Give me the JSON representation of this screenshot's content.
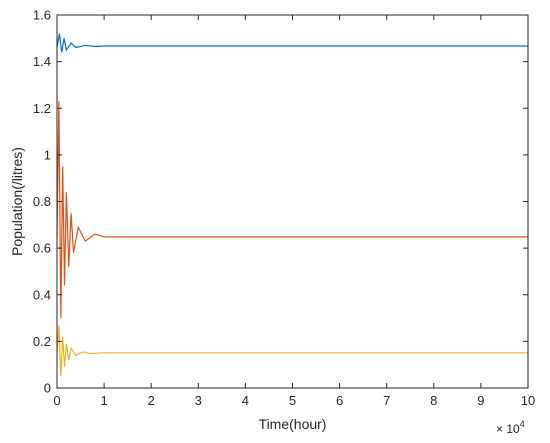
{
  "chart_data": {
    "type": "line",
    "title": "",
    "xlabel": "Time(hour)",
    "ylabel": "Population(/litres)",
    "x_multiplier_label": "× 10",
    "x_multiplier_exponent": "4",
    "xlim": [
      0,
      10
    ],
    "ylim": [
      0,
      1.6
    ],
    "x_ticks": [
      "0",
      "1",
      "2",
      "3",
      "4",
      "5",
      "6",
      "7",
      "8",
      "9",
      "10"
    ],
    "y_ticks": [
      "0",
      "0.2",
      "0.4",
      "0.6",
      "0.8",
      "1",
      "1.2",
      "1.4",
      "1.6"
    ],
    "grid": false,
    "legend": "none",
    "series": [
      {
        "color": "#0072BD",
        "x": [
          0,
          0.05,
          0.1,
          0.15,
          0.2,
          0.3,
          0.4,
          0.6,
          0.8,
          1.0,
          10
        ],
        "values": [
          1.46,
          1.52,
          1.44,
          1.5,
          1.45,
          1.48,
          1.46,
          1.47,
          1.465,
          1.467,
          1.467
        ]
      },
      {
        "color": "#D95319",
        "x": [
          0,
          0.04,
          0.08,
          0.12,
          0.16,
          0.2,
          0.25,
          0.3,
          0.35,
          0.45,
          0.6,
          0.8,
          1.0,
          10
        ],
        "values": [
          0.65,
          1.23,
          0.3,
          0.95,
          0.44,
          0.84,
          0.52,
          0.75,
          0.58,
          0.69,
          0.63,
          0.66,
          0.648,
          0.648
        ]
      },
      {
        "color": "#EDB120",
        "x": [
          0,
          0.04,
          0.08,
          0.12,
          0.16,
          0.2,
          0.25,
          0.3,
          0.4,
          0.55,
          0.7,
          1.0,
          10
        ],
        "values": [
          0.15,
          0.27,
          0.05,
          0.22,
          0.09,
          0.19,
          0.12,
          0.17,
          0.14,
          0.155,
          0.148,
          0.151,
          0.151
        ]
      }
    ]
  }
}
